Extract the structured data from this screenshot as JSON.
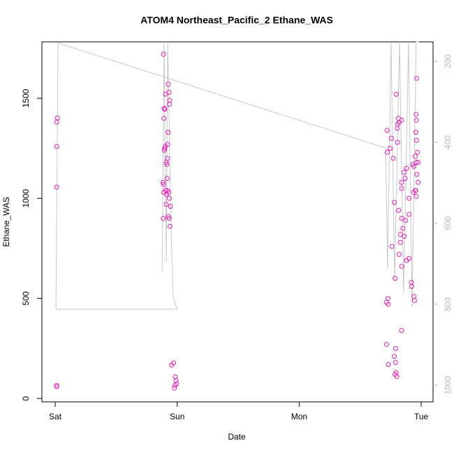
{
  "chart_data": {
    "type": "scatter",
    "title": "ATOM4 Northeast_Pacific_2 Ethane_WAS",
    "x_label": "Date",
    "y_label": "Ethane_WAS",
    "xlim": [
      -0.109,
      3.097
    ],
    "ylim": [
      -17,
      1782
    ],
    "y2lim": [
      1041,
      152
    ],
    "xticks": [
      {
        "value": 0,
        "label": "Sat"
      },
      {
        "value": 1,
        "label": "Sun"
      },
      {
        "value": 2,
        "label": "Mon"
      },
      {
        "value": 3,
        "label": "Tue"
      }
    ],
    "yticks": [
      0,
      500,
      1000,
      1500
    ],
    "y2ticks": [
      200,
      400,
      600,
      800,
      1000
    ],
    "series": [
      {
        "name": "Ethane_WAS",
        "color": "#e41cb4",
        "x": [
          0.012,
          0.012,
          0.012,
          0.018,
          0.012,
          0.012,
          0.888,
          0.893,
          0.899,
          0.904,
          0.89,
          0.894,
          0.897,
          0.901,
          0.884,
          0.887,
          0.89,
          0.905,
          0.912,
          0.91,
          0.915,
          0.918,
          0.921,
          0.927,
          0.932,
          0.938,
          0.936,
          0.925,
          0.922,
          0.93,
          0.91,
          0.945,
          0.886,
          0.935,
          0.927,
          0.94,
          0.92,
          0.935,
          0.954,
          0.97,
          0.984,
          0.99,
          0.996,
          0.977,
          0.982,
          2.795,
          2.812,
          2.84,
          2.818,
          2.806,
          2.804,
          2.72,
          2.756,
          2.805,
          2.745,
          2.722,
          2.77,
          2.96,
          2.93,
          2.88,
          2.858,
          2.868,
          2.84,
          2.84,
          2.955,
          2.938,
          2.9,
          2.78,
          2.815,
          2.9,
          2.84,
          2.872,
          2.85,
          2.83,
          2.86,
          2.83,
          2.76,
          2.82,
          2.9,
          2.88,
          2.84,
          2.786,
          2.92,
          2.922,
          2.94,
          2.945,
          2.716,
          2.73,
          2.727,
          2.84,
          2.716,
          2.79,
          2.78,
          2.79,
          2.73,
          2.795,
          2.785,
          2.8,
          2.963,
          2.958,
          2.96,
          2.956,
          2.962,
          2.97,
          2.95,
          2.975,
          2.94,
          2.965,
          2.975,
          2.952,
          2.96
        ],
        "values": [
          66,
          59,
          1381,
          1402,
          1259,
          1056,
          1720,
          1450,
          1445,
          1520,
          1400,
          1240,
          1250,
          1260,
          1080,
          1070,
          1030,
          1040,
          1020,
          1180,
          1170,
          1100,
          1200,
          1570,
          1530,
          1490,
          1470,
          1330,
          1270,
          1030,
          970,
          960,
          900,
          900,
          910,
          860,
          1040,
          1000,
          167,
          178,
          108,
          90,
          73,
          52,
          66,
          1520,
          1400,
          1390,
          1380,
          1370,
          1350,
          1340,
          1300,
          1280,
          1250,
          1230,
          1200,
          1180,
          1170,
          1150,
          1130,
          1100,
          1080,
          1050,
          1040,
          1030,
          1000,
          980,
          940,
          920,
          900,
          890,
          850,
          820,
          810,
          780,
          760,
          720,
          700,
          690,
          660,
          600,
          580,
          560,
          510,
          490,
          480,
          470,
          500,
          340,
          270,
          250,
          210,
          180,
          170,
          130,
          120,
          110,
          1600,
          1420,
          1390,
          1330,
          1290,
          1230,
          1210,
          1180,
          1160,
          1120,
          1080,
          1040,
          1010
        ]
      }
    ],
    "line": {
      "axis": "y2",
      "color": "#c8c8c8",
      "x": [
        0.876,
        0.893,
        0.91,
        0.922,
        0.95,
        0.967,
        1.0,
        0.006,
        0.023,
        2.708,
        2.725,
        2.753,
        2.782,
        2.822,
        2.856,
        2.896,
        2.925,
        2.959,
        2.982
      ],
      "values": [
        721,
        152,
        695,
        152,
        617,
        781,
        812,
        812,
        155,
        414,
        712,
        152,
        738,
        152,
        772,
        152,
        807,
        152,
        152
      ]
    }
  }
}
